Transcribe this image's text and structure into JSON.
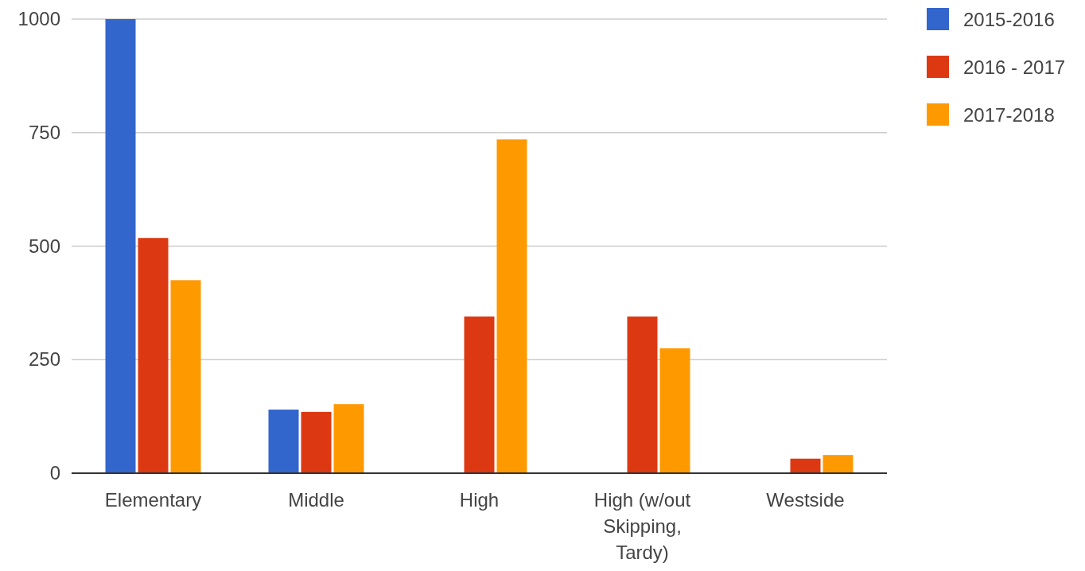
{
  "chart_data": {
    "type": "bar",
    "categories": [
      "Elementary",
      "Middle",
      "High",
      "High (w/out Skipping, Tardy)",
      "Westside"
    ],
    "series": [
      {
        "name": "2015-2016",
        "color": "#3366cc",
        "values": [
          1000,
          140,
          null,
          null,
          null
        ]
      },
      {
        "name": "2016 - 2017",
        "color": "#dc3912",
        "values": [
          518,
          135,
          345,
          345,
          32
        ]
      },
      {
        "name": "2017-2018",
        "color": "#ff9900",
        "values": [
          425,
          152,
          735,
          275,
          40
        ]
      }
    ],
    "ylim": [
      0,
      1000
    ],
    "yticks": [
      0,
      250,
      500,
      750,
      1000
    ],
    "grid": "y",
    "legend": "top right"
  }
}
